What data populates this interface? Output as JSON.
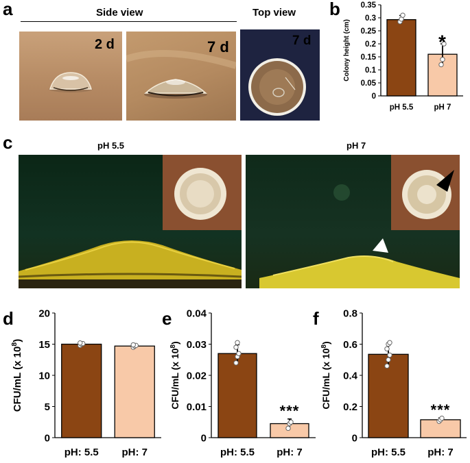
{
  "panel_a": {
    "label": "a",
    "side_view_label": "Side view",
    "top_view_label": "Top view",
    "day_2": "2 d",
    "day_7_side": "7 d",
    "day_7_top": "7 d"
  },
  "panel_c": {
    "label": "c",
    "left_title": "pH  5.5",
    "right_title": "pH 7"
  },
  "colors": {
    "dark_bar": "#8B4513",
    "light_bar": "#F8C9A8",
    "photo_bg_green": "#0e2a1a",
    "inset_bg": "#8a5030"
  },
  "chart_data": [
    {
      "panel": "b",
      "type": "bar",
      "categories": [
        "pH 5.5",
        "pH 7"
      ],
      "values": [
        0.293,
        0.16
      ],
      "errors": [
        0.016,
        0.04
      ],
      "points": [
        [
          0.285,
          0.295,
          0.31
        ],
        [
          0.12,
          0.14,
          0.2
        ]
      ],
      "significance": [
        "",
        "*"
      ],
      "ylabel": "Colony height (cm)",
      "ylim": [
        0,
        0.35
      ],
      "yticks": [
        0,
        0.05,
        0.1,
        0.15,
        0.2,
        0.25,
        0.3,
        0.35
      ],
      "yticklabels": [
        "0",
        "0.05",
        "0.1",
        "0.15",
        "0.2",
        "0.25",
        "0.3",
        "0.35"
      ]
    },
    {
      "panel": "d",
      "type": "bar",
      "categories": [
        "pH: 5.5",
        "pH: 7"
      ],
      "values": [
        15.0,
        14.7
      ],
      "errors": [
        0.25,
        0.25
      ],
      "points": [
        [
          14.8,
          15.0,
          15.1,
          15.2
        ],
        [
          14.5,
          14.7,
          14.8,
          14.9
        ]
      ],
      "significance": [
        "",
        ""
      ],
      "ylabel": "CFU/mL (x 10",
      "ylabel_sup": "8",
      "ylabel_end": ")",
      "ylim": [
        0,
        20
      ],
      "yticks": [
        0,
        5,
        10,
        15,
        20
      ],
      "yticklabels": [
        "0",
        "5",
        "10",
        "15",
        "20"
      ]
    },
    {
      "panel": "e",
      "type": "bar",
      "categories": [
        "pH: 5.5",
        "pH: 7"
      ],
      "values": [
        0.027,
        0.0045
      ],
      "errors": [
        0.0028,
        0.0015
      ],
      "points": [
        [
          0.024,
          0.026,
          0.027,
          0.029,
          0.0305
        ],
        [
          0.003,
          0.0045,
          0.005
        ]
      ],
      "significance": [
        "",
        "***"
      ],
      "ylabel": "CFU/mL (x 10",
      "ylabel_sup": "8",
      "ylabel_end": ")",
      "ylim": [
        0,
        0.04
      ],
      "yticks": [
        0,
        0.01,
        0.02,
        0.03,
        0.04
      ],
      "yticklabels": [
        "0",
        "0.01",
        "0.02",
        "0.03",
        "0.04"
      ]
    },
    {
      "panel": "f",
      "type": "bar",
      "categories": [
        "pH: 5.5",
        "pH: 7"
      ],
      "values": [
        0.535,
        0.115
      ],
      "errors": [
        0.07,
        0.012
      ],
      "points": [
        [
          0.46,
          0.5,
          0.53,
          0.57,
          0.6,
          0.61
        ],
        [
          0.105,
          0.115,
          0.125
        ]
      ],
      "significance": [
        "",
        "***"
      ],
      "ylabel": "CFU/mL (x 10",
      "ylabel_sup": "8",
      "ylabel_end": ")",
      "ylim": [
        0,
        0.8
      ],
      "yticks": [
        0,
        0.2,
        0.4,
        0.6,
        0.8
      ],
      "yticklabels": [
        "0",
        "0.2",
        "0.4",
        "0.6",
        "0.8"
      ]
    }
  ]
}
